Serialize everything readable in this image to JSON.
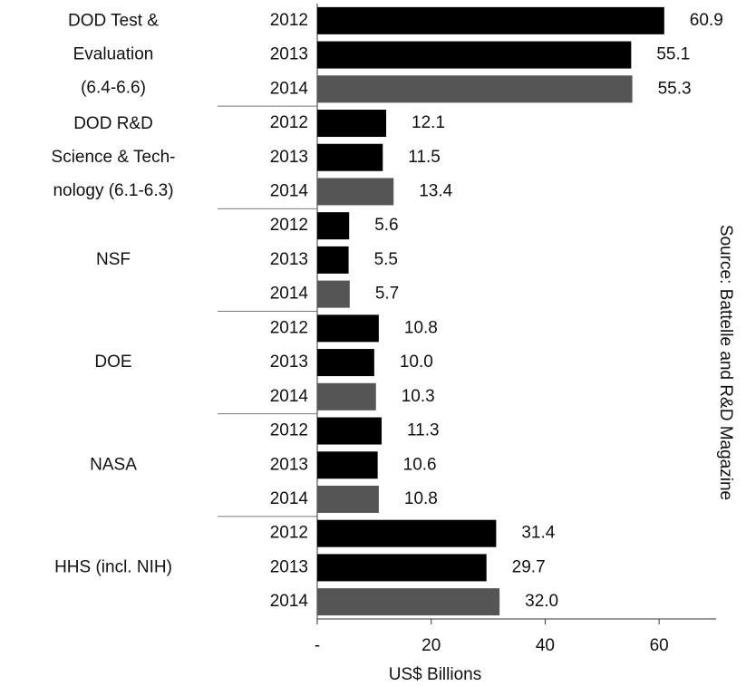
{
  "chart_data": {
    "type": "bar",
    "orientation": "horizontal",
    "groups": [
      {
        "lines": [
          "DOD Test &",
          "Evaluation",
          "(6.4-6.6)"
        ]
      },
      {
        "lines": [
          "DOD R&D",
          "Science & Tech-",
          "nology (6.1-6.3)"
        ]
      },
      {
        "lines": [
          "NSF"
        ]
      },
      {
        "lines": [
          "DOE"
        ]
      },
      {
        "lines": [
          "NASA"
        ]
      },
      {
        "lines": [
          "HHS (incl. NIH)"
        ]
      }
    ],
    "series": [
      {
        "name": "2012",
        "color": "#000000",
        "values": [
          60.9,
          12.1,
          5.6,
          10.8,
          11.3,
          31.4
        ],
        "value_labels": [
          "60.9",
          "12.1",
          "5.6",
          "10.8",
          "11.3",
          "31.4"
        ]
      },
      {
        "name": "2013",
        "color": "#000000",
        "values": [
          55.1,
          11.5,
          5.5,
          10.0,
          10.6,
          29.7
        ],
        "value_labels": [
          "55.1",
          "11.5",
          "5.5",
          "10.0",
          "10.6",
          "29.7"
        ]
      },
      {
        "name": "2014",
        "color": "#555555",
        "values": [
          55.3,
          13.4,
          5.7,
          10.3,
          10.8,
          32.0
        ],
        "value_labels": [
          "55.3",
          "13.4",
          "5.7",
          "10.3",
          "10.8",
          "32.0"
        ]
      }
    ],
    "xlim": [
      0,
      70
    ],
    "xticks": [
      {
        "value": 0,
        "label": "-"
      },
      20,
      40,
      60
    ],
    "xlabel": "US$ Billions",
    "annotation": "Source:  Battelle and R&D Magazine"
  }
}
